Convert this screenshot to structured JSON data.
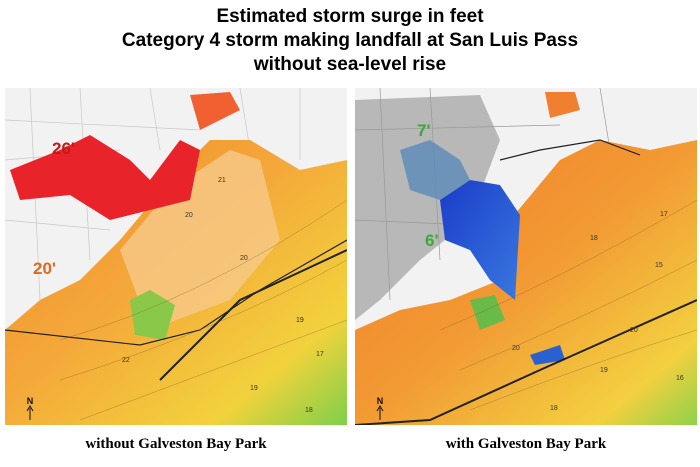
{
  "title": {
    "lines": [
      "Estimated storm surge in feet",
      "Category 4 storm making landfall at San Luis Pass",
      "without sea-level rise"
    ]
  },
  "panels": [
    {
      "caption": "without Galveston Bay Park",
      "labels": [
        "26'",
        "20'"
      ],
      "contours": [
        "21",
        "20",
        "20",
        "19",
        "19",
        "18",
        "17",
        "22"
      ],
      "north": "N"
    },
    {
      "caption": "with Galveston Bay Park",
      "labels": [
        "7'",
        "6'"
      ],
      "contours": [
        "18",
        "17",
        "15",
        "20",
        "20",
        "19",
        "18",
        "16"
      ],
      "north": "N"
    }
  ]
}
